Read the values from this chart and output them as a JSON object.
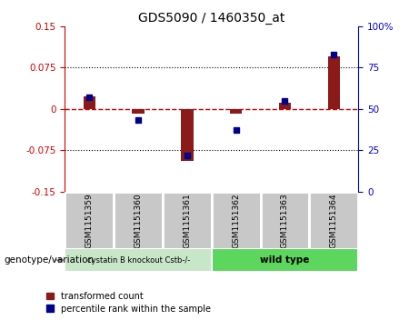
{
  "title": "GDS5090 / 1460350_at",
  "samples": [
    "GSM1151359",
    "GSM1151360",
    "GSM1151361",
    "GSM1151362",
    "GSM1151363",
    "GSM1151364"
  ],
  "transformed_count": [
    0.022,
    -0.008,
    -0.095,
    -0.008,
    0.012,
    0.095
  ],
  "percentile_rank": [
    57,
    43,
    22,
    37,
    55,
    83
  ],
  "group1_label": "cystatin B knockout Cstb-/-",
  "group2_label": "wild type",
  "group1_color": "#c8e6c8",
  "group2_color": "#5cd65c",
  "sample_box_color": "#c8c8c8",
  "sample_box_edge": "#ffffff",
  "ylim_left": [
    -0.15,
    0.15
  ],
  "ylim_right": [
    0,
    100
  ],
  "yticks_left": [
    -0.15,
    -0.075,
    0,
    0.075,
    0.15
  ],
  "ytick_labels_left": [
    "-0.15",
    "-0.075",
    "0",
    "0.075",
    "0.15"
  ],
  "yticks_right": [
    0,
    25,
    50,
    75,
    100
  ],
  "ytick_labels_right": [
    "0",
    "25",
    "50",
    "75",
    "100%"
  ],
  "bar_color": "#8B1A1A",
  "dot_color": "#00008B",
  "zero_line_color": "#CC0000",
  "left_axis_color": "#CC0000",
  "right_axis_color": "#0000CC",
  "legend_red_label": "transformed count",
  "legend_blue_label": "percentile rank within the sample",
  "genotype_label": "genotype/variation",
  "bar_width": 0.25
}
